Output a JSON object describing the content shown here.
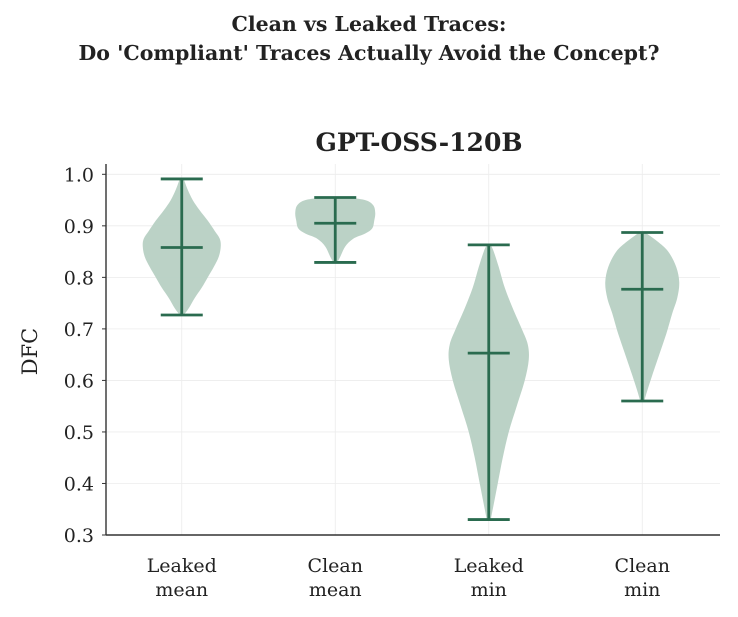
{
  "figure": {
    "suptitle_lines": [
      "Clean vs Leaked Traces:",
      "Do 'Compliant' Traces Actually Avoid the Concept?"
    ]
  },
  "chart_data": {
    "type": "violin",
    "title": "GPT-OSS-120B",
    "xlabel": "",
    "ylabel": "DFC",
    "ylim": [
      0.3,
      1.02
    ],
    "yticks": [
      0.3,
      0.4,
      0.5,
      0.6,
      0.7,
      0.8,
      0.9,
      1.0
    ],
    "grid": true,
    "legend": "none",
    "colors": {
      "violin_fill": "#b7d0c3",
      "line": "#2a6b4f",
      "axis": "#333333",
      "grid": "#ececec",
      "text": "#222222"
    },
    "categories": [
      {
        "label_lines": [
          "Leaked",
          "mean"
        ],
        "min": 0.727,
        "max": 0.991,
        "median": 0.858
      },
      {
        "label_lines": [
          "Clean",
          "mean"
        ],
        "min": 0.829,
        "max": 0.955,
        "median": 0.905
      },
      {
        "label_lines": [
          "Leaked",
          "min"
        ],
        "min": 0.33,
        "max": 0.863,
        "median": 0.653
      },
      {
        "label_lines": [
          "Clean",
          "min"
        ],
        "min": 0.56,
        "max": 0.887,
        "median": 0.777
      }
    ]
  }
}
